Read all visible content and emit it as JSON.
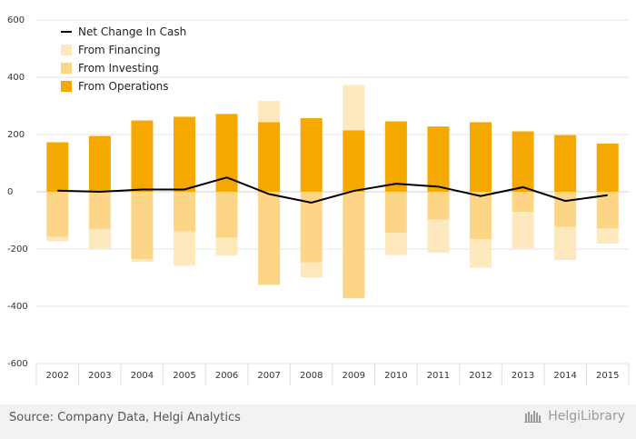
{
  "chart_data": {
    "type": "bar",
    "title": "",
    "xlabel": "",
    "ylabel": "",
    "ylim": [
      -600,
      600
    ],
    "yticks": [
      600,
      400,
      200,
      0,
      -200,
      -400,
      -600
    ],
    "categories": [
      "2002",
      "2003",
      "2004",
      "2005",
      "2006",
      "2007",
      "2008",
      "2009",
      "2010",
      "2011",
      "2012",
      "2013",
      "2014",
      "2015"
    ],
    "series": [
      {
        "name": "From Operations",
        "kind": "bar",
        "color": "#f5a800",
        "values": [
          173,
          195,
          249,
          262,
          272,
          243,
          257,
          215,
          246,
          228,
          243,
          211,
          198,
          168
        ]
      },
      {
        "name": "From Investing",
        "kind": "bar",
        "color": "#fdd587",
        "values": [
          -158,
          -130,
          -235,
          -138,
          -160,
          -325,
          -247,
          -372,
          -143,
          -97,
          -165,
          -70,
          -122,
          -128
        ]
      },
      {
        "name": "From Financing",
        "kind": "bar",
        "color": "#fee8bd",
        "values": [
          -15,
          -70,
          -10,
          -120,
          -62,
          74,
          -52,
          158,
          -78,
          -116,
          -100,
          -128,
          -116,
          -53
        ]
      },
      {
        "name": "Net Change In Cash",
        "kind": "line",
        "color": "#000000",
        "values": [
          4,
          0,
          8,
          8,
          50,
          -8,
          -38,
          3,
          28,
          18,
          -15,
          16,
          -32,
          -12
        ]
      }
    ],
    "legend": {
      "position": "top-left",
      "entries": [
        "Net Change In Cash",
        "From Financing",
        "From Investing",
        "From Operations"
      ]
    },
    "grid": true
  },
  "footer": {
    "source": "Source: Company Data, Helgi Analytics",
    "brand": "HelgiLibrary"
  }
}
